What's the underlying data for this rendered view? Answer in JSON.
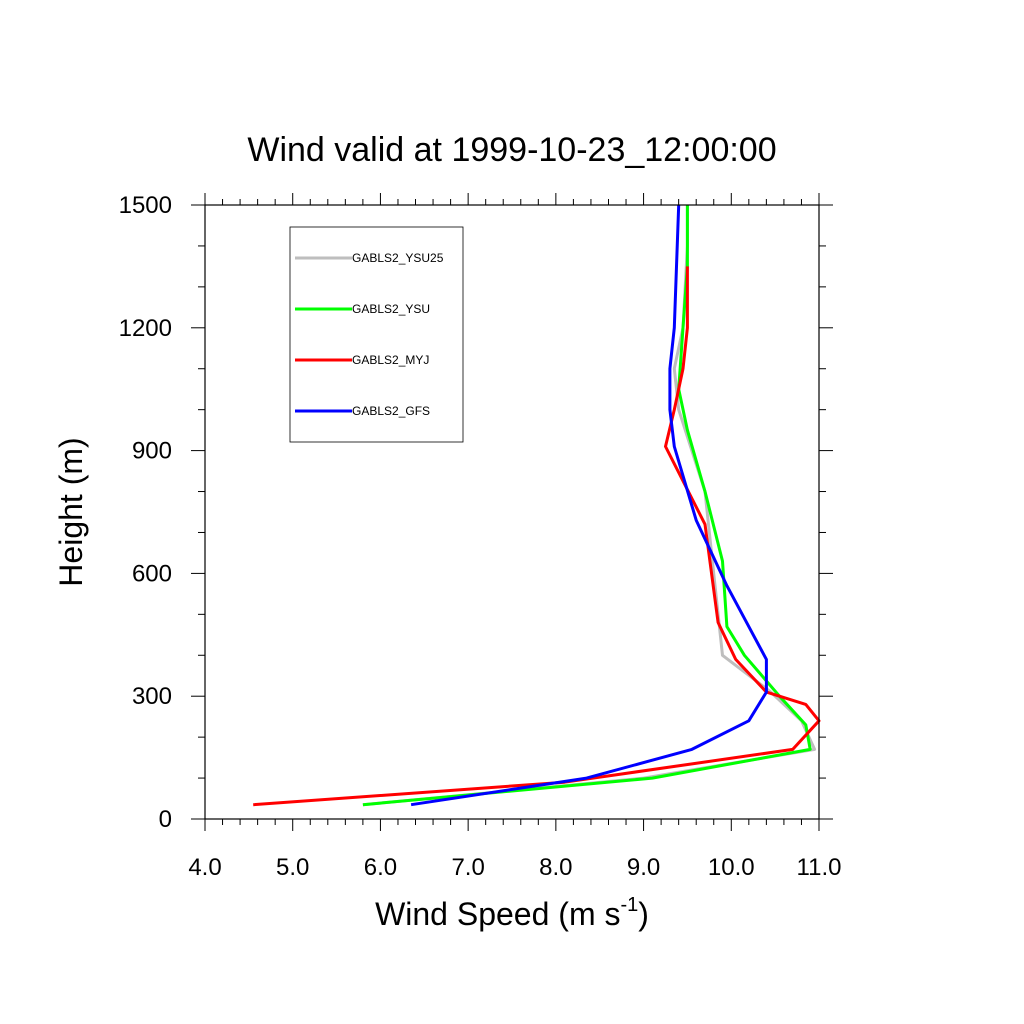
{
  "chart_data": {
    "type": "line",
    "title": "Wind valid at 1999-10-23_12:00:00",
    "xlabel": {
      "base": "Wind Speed (m s",
      "sup": "-1",
      "end": ")"
    },
    "ylabel": "Height (m)",
    "xlim": [
      4.0,
      11.0
    ],
    "ylim": [
      0,
      1500
    ],
    "xticks": [
      "4.0",
      "5.0",
      "6.0",
      "7.0",
      "8.0",
      "9.0",
      "10.0",
      "11.0"
    ],
    "yticks": [
      "0",
      "300",
      "600",
      "900",
      "1200",
      "1500"
    ],
    "legend_position": "upper-left",
    "series": [
      {
        "name": "GABLS2_YSU25",
        "color": "#bebebe",
        "x": [
          5.8,
          9.0,
          10.95,
          10.8,
          10.45,
          9.9,
          9.8,
          9.7,
          9.4,
          9.35,
          9.45,
          9.5,
          9.5
        ],
        "y": [
          35,
          100,
          170,
          240,
          310,
          400,
          600,
          800,
          1000,
          1100,
          1200,
          1400,
          1500
        ]
      },
      {
        "name": "GABLS2_YSU",
        "color": "#00ff00",
        "x": [
          5.8,
          9.1,
          10.9,
          10.85,
          10.55,
          10.15,
          9.95,
          9.9,
          9.7,
          9.5,
          9.4,
          9.45,
          9.5,
          9.5
        ],
        "y": [
          35,
          100,
          170,
          230,
          300,
          400,
          470,
          630,
          800,
          950,
          1050,
          1200,
          1350,
          1500
        ]
      },
      {
        "name": "GABLS2_MYJ",
        "color": "#ff0000",
        "x": [
          4.55,
          8.1,
          10.7,
          11.0,
          10.85,
          10.4,
          10.05,
          9.85,
          9.7,
          9.25,
          9.35,
          9.45,
          9.5,
          9.5
        ],
        "y": [
          35,
          90,
          170,
          240,
          280,
          310,
          390,
          480,
          720,
          910,
          1000,
          1100,
          1200,
          1350
        ]
      },
      {
        "name": "GABLS2_GFS",
        "color": "#0000ff",
        "x": [
          6.35,
          8.35,
          9.55,
          10.2,
          10.4,
          10.4,
          10.2,
          9.95,
          9.6,
          9.35,
          9.3,
          9.3,
          9.35,
          9.4
        ],
        "y": [
          35,
          100,
          170,
          240,
          310,
          390,
          470,
          570,
          730,
          910,
          1000,
          1100,
          1200,
          1500
        ]
      }
    ]
  }
}
